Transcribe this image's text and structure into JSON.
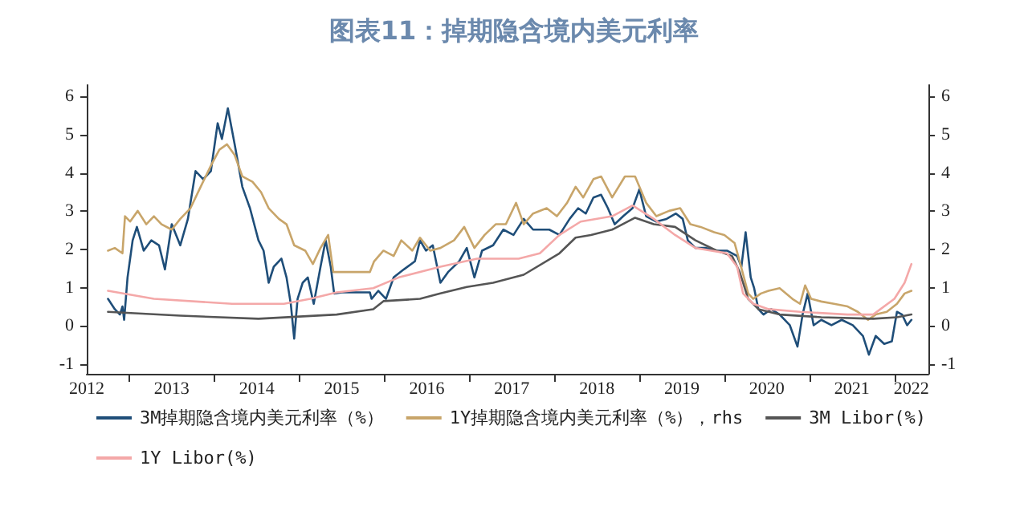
{
  "chart_data": {
    "type": "line",
    "title": "图表11：掉期隐含境内美元利率",
    "xlim": [
      2012.5,
      2022.4
    ],
    "xticks": [
      {
        "value": 2012.5,
        "label": "2012"
      },
      {
        "value": 2013,
        "label": null
      },
      {
        "value": 2013.5,
        "label": "2013"
      },
      {
        "value": 2014,
        "label": null
      },
      {
        "value": 2014.5,
        "label": "2014"
      },
      {
        "value": 2015,
        "label": null
      },
      {
        "value": 2015.5,
        "label": "2015"
      },
      {
        "value": 2016,
        "label": null
      },
      {
        "value": 2016.5,
        "label": "2016"
      },
      {
        "value": 2017,
        "label": null
      },
      {
        "value": 2017.5,
        "label": "2017"
      },
      {
        "value": 2018,
        "label": null
      },
      {
        "value": 2018.5,
        "label": "2018"
      },
      {
        "value": 2019,
        "label": null
      },
      {
        "value": 2019.5,
        "label": "2019"
      },
      {
        "value": 2020,
        "label": null
      },
      {
        "value": 2020.5,
        "label": "2020"
      },
      {
        "value": 2021,
        "label": null
      },
      {
        "value": 2021.5,
        "label": "2021"
      },
      {
        "value": 2022,
        "label": null
      },
      {
        "value": 2022.2,
        "label": "2022"
      }
    ],
    "ylim": [
      -1.25,
      6.3
    ],
    "yticks": [
      -1,
      0,
      1,
      2,
      3,
      4,
      5,
      6
    ],
    "y2lim": [
      -1.25,
      6.3
    ],
    "y2ticks": [
      -1,
      0,
      1,
      2,
      3,
      4,
      5,
      6
    ],
    "legend": "bottom",
    "grid": false,
    "marker": "none",
    "line_style": "solid",
    "series": [
      {
        "name": "3M掉期隐含境内美元利率（%）",
        "color": "#1f4e79",
        "x": [
          2012.75,
          2012.83,
          2012.89,
          2012.92,
          2012.94,
          2012.98,
          2013.04,
          2013.09,
          2013.17,
          2013.26,
          2013.35,
          2013.42,
          2013.5,
          2013.6,
          2013.69,
          2013.78,
          2013.87,
          2013.96,
          2014.04,
          2014.09,
          2014.16,
          2014.24,
          2014.33,
          2014.42,
          2014.52,
          2014.58,
          2014.64,
          2014.7,
          2014.79,
          2014.85,
          2014.9,
          2014.94,
          2014.98,
          2015.04,
          2015.1,
          2015.17,
          2015.25,
          2015.31,
          2015.37,
          2015.41,
          2015.5,
          2015.68,
          2015.83,
          2015.85,
          2015.93,
          2016.02,
          2016.11,
          2016.23,
          2016.36,
          2016.42,
          2016.49,
          2016.57,
          2016.66,
          2016.75,
          2016.88,
          2016.97,
          2017.06,
          2017.15,
          2017.28,
          2017.4,
          2017.52,
          2017.64,
          2017.75,
          2017.94,
          2018.06,
          2018.18,
          2018.28,
          2018.37,
          2018.46,
          2018.55,
          2018.63,
          2018.71,
          2018.81,
          2018.92,
          2019.0,
          2019.08,
          2019.2,
          2019.32,
          2019.43,
          2019.51,
          2019.57,
          2019.66,
          2019.78,
          2019.91,
          2020.03,
          2020.15,
          2020.2,
          2020.25,
          2020.31,
          2020.35,
          2020.4,
          2020.46,
          2020.55,
          2020.65,
          2020.77,
          2020.86,
          2020.92,
          2020.98,
          2021.05,
          2021.14,
          2021.26,
          2021.38,
          2021.51,
          2021.63,
          2021.7,
          2021.78,
          2021.88,
          2021.97,
          2022.03,
          2022.09,
          2022.15,
          2022.2
        ],
        "values": [
          0.71,
          0.44,
          0.3,
          0.51,
          0.16,
          1.27,
          2.24,
          2.59,
          1.97,
          2.24,
          2.11,
          1.48,
          2.66,
          2.11,
          2.8,
          4.05,
          3.84,
          4.05,
          5.3,
          4.89,
          5.69,
          4.75,
          3.64,
          3.08,
          2.24,
          1.97,
          1.13,
          1.55,
          1.76,
          1.27,
          0.58,
          -0.33,
          0.71,
          1.13,
          1.27,
          0.58,
          1.55,
          2.24,
          1.55,
          0.85,
          0.88,
          0.88,
          0.88,
          0.71,
          0.92,
          0.71,
          1.27,
          1.48,
          1.69,
          2.24,
          1.97,
          2.11,
          1.13,
          1.41,
          1.69,
          2.04,
          1.27,
          1.97,
          2.11,
          2.52,
          2.38,
          2.8,
          2.52,
          2.52,
          2.38,
          2.8,
          3.08,
          2.94,
          3.36,
          3.43,
          3.08,
          2.66,
          2.87,
          3.08,
          3.57,
          2.87,
          2.73,
          2.8,
          2.94,
          2.8,
          2.24,
          2.04,
          2.04,
          1.97,
          1.97,
          1.83,
          1.55,
          2.45,
          1.27,
          0.99,
          0.44,
          0.3,
          0.44,
          0.3,
          0.02,
          -0.54,
          0.3,
          0.85,
          0.02,
          0.16,
          0.02,
          0.16,
          0.02,
          -0.26,
          -0.75,
          -0.26,
          -0.47,
          -0.4,
          0.37,
          0.3,
          0.02,
          0.16
        ]
      },
      {
        "name": "1Y掉期隐含境内美元利率（%），rhs",
        "color": "#c8a56a",
        "x": [
          2012.75,
          2012.83,
          2012.92,
          2012.95,
          2013.01,
          2013.1,
          2013.2,
          2013.29,
          2013.38,
          2013.5,
          2013.6,
          2013.72,
          2013.84,
          2013.96,
          2014.06,
          2014.15,
          2014.24,
          2014.33,
          2014.45,
          2014.55,
          2014.64,
          2014.76,
          2014.85,
          2014.94,
          2015.07,
          2015.16,
          2015.25,
          2015.34,
          2015.4,
          2015.68,
          2015.83,
          2015.88,
          2015.99,
          2016.11,
          2016.2,
          2016.33,
          2016.42,
          2016.54,
          2016.66,
          2016.82,
          2016.94,
          2017.06,
          2017.18,
          2017.31,
          2017.43,
          2017.55,
          2017.64,
          2017.75,
          2017.91,
          2018.03,
          2018.15,
          2018.25,
          2018.34,
          2018.46,
          2018.55,
          2018.68,
          2018.83,
          2018.95,
          2019.08,
          2019.2,
          2019.35,
          2019.48,
          2019.6,
          2019.72,
          2019.88,
          2020.0,
          2020.12,
          2020.18,
          2020.23,
          2020.28,
          2020.34,
          2020.43,
          2020.52,
          2020.65,
          2020.8,
          2020.89,
          2020.95,
          2021.02,
          2021.14,
          2021.29,
          2021.45,
          2021.57,
          2021.69,
          2021.78,
          2021.91,
          2022.03,
          2022.12,
          2022.2
        ],
        "values": [
          1.97,
          2.04,
          1.9,
          2.87,
          2.73,
          3.01,
          2.66,
          2.87,
          2.66,
          2.52,
          2.8,
          3.08,
          3.64,
          4.19,
          4.61,
          4.75,
          4.47,
          3.91,
          3.77,
          3.5,
          3.08,
          2.8,
          2.66,
          2.11,
          1.97,
          1.62,
          2.04,
          2.38,
          1.41,
          1.41,
          1.41,
          1.69,
          1.97,
          1.83,
          2.24,
          1.97,
          2.31,
          1.97,
          2.04,
          2.24,
          2.59,
          2.04,
          2.38,
          2.66,
          2.66,
          3.22,
          2.66,
          2.94,
          3.08,
          2.87,
          3.22,
          3.64,
          3.36,
          3.84,
          3.91,
          3.36,
          3.91,
          3.91,
          3.22,
          2.87,
          3.01,
          3.08,
          2.66,
          2.59,
          2.45,
          2.38,
          2.17,
          1.69,
          1.27,
          0.85,
          0.71,
          0.85,
          0.92,
          0.99,
          0.71,
          0.58,
          1.06,
          0.71,
          0.64,
          0.58,
          0.51,
          0.37,
          0.16,
          0.3,
          0.37,
          0.58,
          0.85,
          0.92
        ]
      },
      {
        "name": "3M Libor(%)",
        "color": "#555555",
        "x": [
          2012.75,
          2013.6,
          2014.52,
          2015.44,
          2015.87,
          2015.99,
          2016.42,
          2016.66,
          2016.97,
          2017.28,
          2017.64,
          2018.06,
          2018.25,
          2018.43,
          2018.68,
          2018.95,
          2019.17,
          2019.42,
          2019.66,
          2019.91,
          2020.09,
          2020.18,
          2020.28,
          2020.4,
          2020.65,
          2021.14,
          2021.75,
          2022.03,
          2022.2
        ],
        "values": [
          0.37,
          0.27,
          0.19,
          0.3,
          0.44,
          0.65,
          0.71,
          0.85,
          1.02,
          1.13,
          1.34,
          1.9,
          2.31,
          2.38,
          2.52,
          2.83,
          2.66,
          2.59,
          2.24,
          1.97,
          1.83,
          1.41,
          0.71,
          0.44,
          0.3,
          0.23,
          0.19,
          0.23,
          0.3
        ]
      },
      {
        "name": "1Y Libor(%)",
        "color": "#f4a8a8",
        "x": [
          2012.75,
          2013.29,
          2014.21,
          2014.82,
          2015.13,
          2015.44,
          2015.87,
          2016.17,
          2016.66,
          2017.09,
          2017.58,
          2017.83,
          2018.06,
          2018.31,
          2018.68,
          2018.92,
          2019.17,
          2019.42,
          2019.66,
          2020.03,
          2020.15,
          2020.22,
          2020.34,
          2020.52,
          2020.89,
          2021.45,
          2021.75,
          2022.0,
          2022.12,
          2022.2
        ],
        "values": [
          0.92,
          0.71,
          0.58,
          0.58,
          0.71,
          0.88,
          0.99,
          1.27,
          1.55,
          1.76,
          1.76,
          1.9,
          2.38,
          2.73,
          2.87,
          3.15,
          2.8,
          2.38,
          2.04,
          1.9,
          1.55,
          0.85,
          0.58,
          0.44,
          0.37,
          0.3,
          0.3,
          0.71,
          1.13,
          1.62
        ]
      }
    ]
  }
}
